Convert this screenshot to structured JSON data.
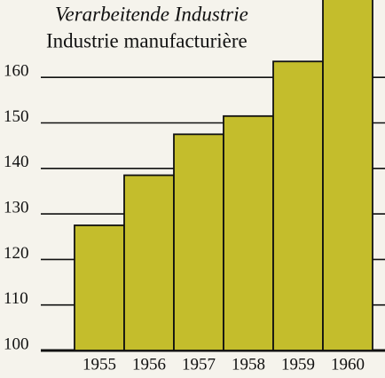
{
  "chart_data": {
    "type": "bar",
    "title": "Verarbeitende Industrie",
    "subtitle": "Industrie manufacturière",
    "categories": [
      "1955",
      "1956",
      "1957",
      "1958",
      "1959",
      "1960"
    ],
    "values": [
      127.5,
      138.5,
      147.5,
      151.5,
      163.5,
      180
    ],
    "color": "#c4bd2c",
    "ylim": [
      100,
      177
    ],
    "yticks": [
      100,
      110,
      120,
      130,
      140,
      150,
      160
    ],
    "grid": true
  }
}
